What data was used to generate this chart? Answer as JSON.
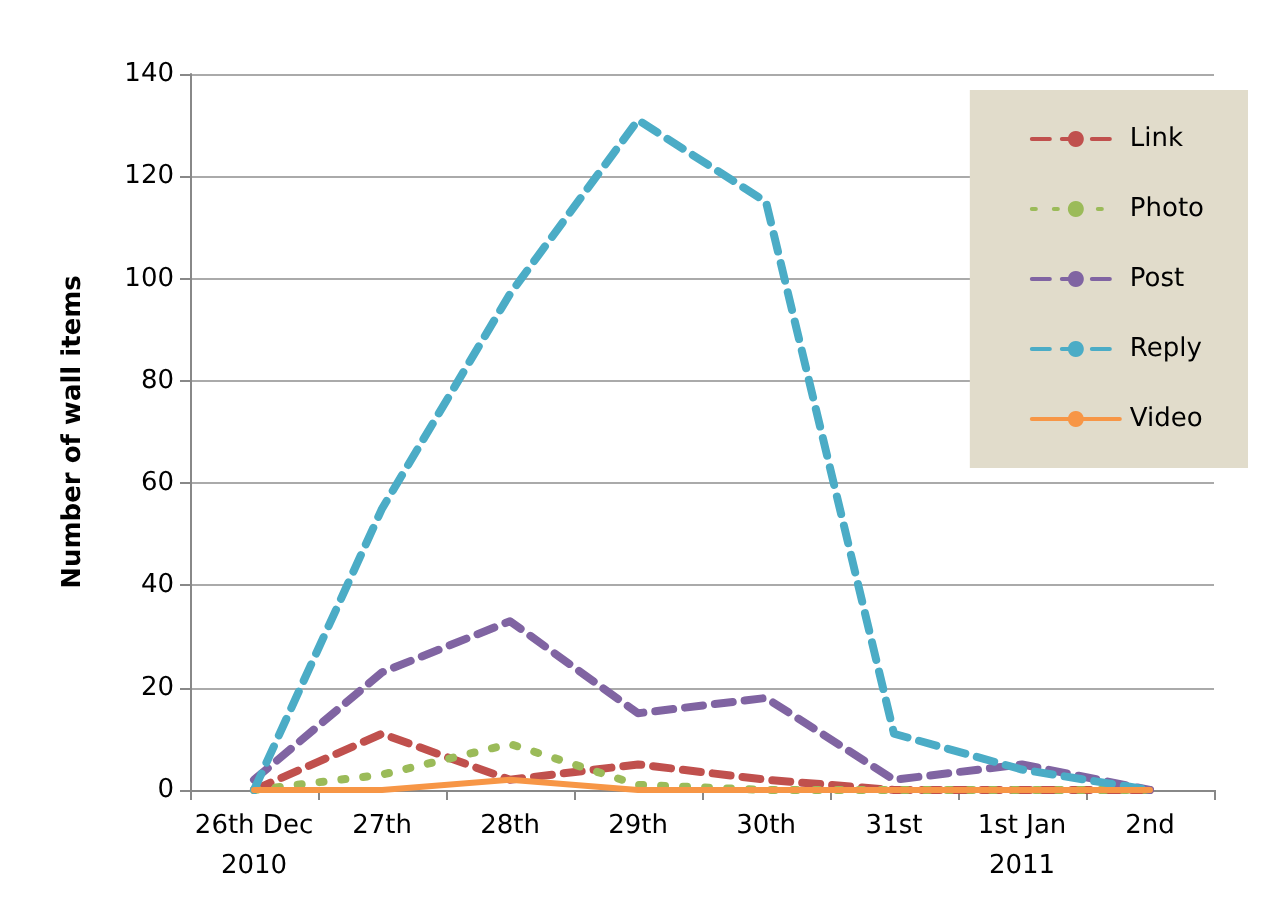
{
  "chart_data": {
    "type": "line",
    "ylabel": "Number of wall items",
    "categories": [
      "26th Dec\n2010",
      "27th",
      "28th",
      "29th",
      "30th",
      "31st",
      "1st Jan\n2011",
      "2nd"
    ],
    "series": [
      {
        "name": "Link",
        "color": "#c0504d",
        "line_style": "dashed",
        "values": [
          0,
          11,
          2,
          5,
          2,
          0,
          0,
          0
        ]
      },
      {
        "name": "Photo",
        "color": "#9bbb59",
        "line_style": "dotted",
        "values": [
          0,
          3,
          9,
          1,
          0,
          0,
          0,
          0
        ]
      },
      {
        "name": "Post",
        "color": "#8064a2",
        "line_style": "dashed",
        "values": [
          2,
          23,
          33,
          15,
          18,
          2,
          5,
          0
        ]
      },
      {
        "name": "Reply",
        "color": "#4bacc6",
        "line_style": "dashed",
        "values": [
          0,
          55,
          97,
          131,
          115,
          11,
          4,
          0
        ]
      },
      {
        "name": "Video",
        "color": "#f79646",
        "line_style": "solid",
        "values": [
          0,
          0,
          2,
          0,
          0,
          0,
          0,
          0
        ]
      }
    ],
    "ylim": [
      0,
      140
    ],
    "yticks": [
      0,
      20,
      40,
      60,
      80,
      100,
      120,
      140
    ],
    "grid": "y",
    "legend": "top right",
    "marker": "none"
  }
}
